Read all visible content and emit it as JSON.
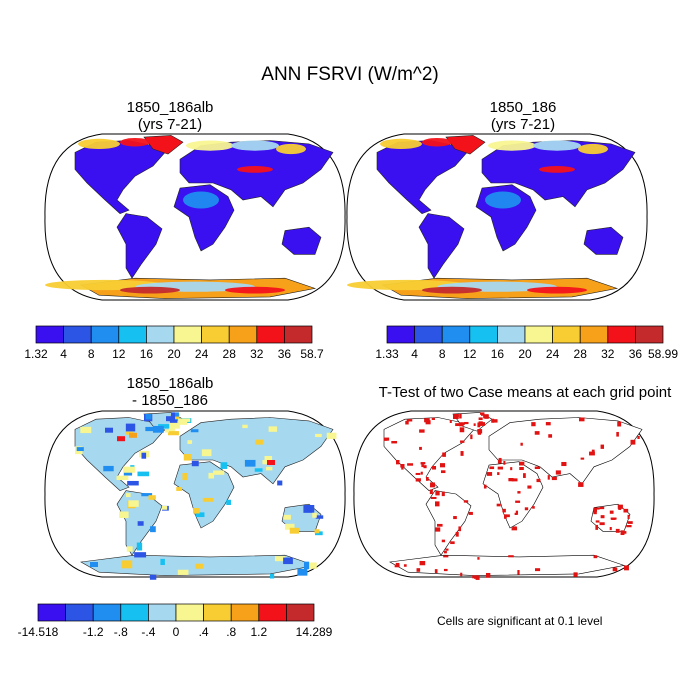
{
  "page": {
    "title": "ANN FSRVI (W/m^2)",
    "note": "Cells are significant at 0.1 level"
  },
  "panels": [
    {
      "title": "1850_186alb",
      "subtitle": "(yrs 7-21)"
    },
    {
      "title": "1850_186",
      "subtitle": "(yrs 7-21)"
    },
    {
      "title": "1850_186alb",
      "subtitle": "- 1850_186"
    },
    {
      "title": "T-Test of two Case means at each grid point",
      "subtitle": ""
    }
  ],
  "colors": {
    "abs_scale": [
      "#3a0ff0",
      "#2c55e6",
      "#1f8ef0",
      "#16c0f0",
      "#a6d8f0",
      "#f8f690",
      "#f8cd34",
      "#f7a01a",
      "#f3121a",
      "#c42a2c"
    ],
    "significance": "#e11212",
    "land_outline": "#000000"
  },
  "chart_data": [
    {
      "type": "heatmap",
      "title": "1850_186alb",
      "subtitle": "(yrs 7-21)",
      "colorbar_labels": [
        "1.32",
        "4",
        "8",
        "12",
        "16",
        "20",
        "24",
        "28",
        "32",
        "36",
        "58.7"
      ],
      "min": 1.32,
      "max": 58.7
    },
    {
      "type": "heatmap",
      "title": "1850_186",
      "subtitle": "(yrs 7-21)",
      "colorbar_labels": [
        "1.33",
        "4",
        "8",
        "12",
        "16",
        "20",
        "24",
        "28",
        "32",
        "36",
        "58.99"
      ],
      "min": 1.33,
      "max": 58.99
    },
    {
      "type": "heatmap",
      "title": "1850_186alb",
      "subtitle": "- 1850_186",
      "colorbar_labels": [
        "-14.518",
        "-1.2",
        "-.8",
        "-.4",
        "0",
        ".4",
        ".8",
        "1.2",
        "14.289"
      ],
      "colorbar_tick_positions": [
        0,
        2,
        3,
        4,
        5,
        6,
        7,
        8,
        10
      ],
      "min": -14.518,
      "max": 14.289
    },
    {
      "type": "heatmap",
      "title": "T-Test of two Case means at each grid point",
      "note": "Cells are significant at 0.1 level"
    }
  ]
}
